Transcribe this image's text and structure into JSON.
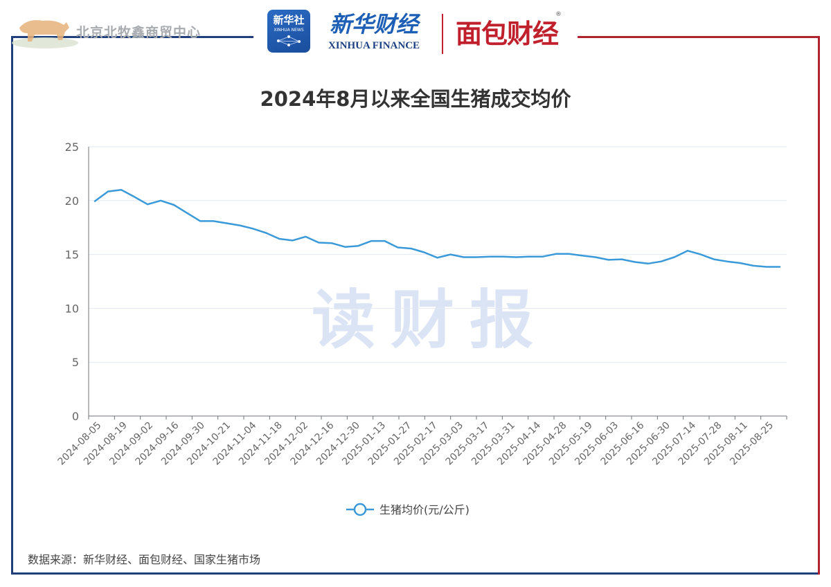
{
  "header": {
    "brand_center": "北京北牧鑫商贸中心",
    "xinhua_badge_cn": "新华社",
    "xinhua_badge_en": "XINHUA NEWS",
    "xinhua_finance_cn": "新华财经",
    "xinhua_finance_en": "XINHUA FINANCE",
    "mianbao": "面包财经",
    "registered_mark": "®"
  },
  "watermark": "读财报",
  "source": "数据来源：新华财经、面包财经、国家生猪市场",
  "colors": {
    "line": "#3a9ad9",
    "frame_left": "#1f3f7a",
    "frame_right": "#b0222e"
  },
  "chart_data": {
    "type": "line",
    "title": "2024年8月以来全国生猪成交均价",
    "xlabel": "",
    "ylabel": "",
    "ylim": [
      0,
      25
    ],
    "yticks": [
      0,
      5,
      10,
      15,
      20,
      25
    ],
    "grid": true,
    "legend_position": "bottom-center",
    "tick_labels": [
      "2024-08-05",
      "2024-08-19",
      "2024-09-02",
      "2024-09-16",
      "2024-09-30",
      "2024-10-21",
      "2024-11-04",
      "2024-11-18",
      "2024-12-02",
      "2024-12-16",
      "2024-12-30",
      "2025-01-13",
      "2025-01-27",
      "2025-02-17",
      "2025-03-03",
      "2025-03-17",
      "2025-03-31",
      "2025-04-14",
      "2025-04-28",
      "2025-05-19",
      "2025-06-03",
      "2025-06-16",
      "2025-06-30",
      "2025-07-14",
      "2025-07-28",
      "2025-08-11",
      "2025-08-25"
    ],
    "series": [
      {
        "name": "生猪均价(元/公斤)",
        "values": [
          19.95,
          20.85,
          21.0,
          20.35,
          19.65,
          20.0,
          19.6,
          18.85,
          18.1,
          18.1,
          17.9,
          17.7,
          17.4,
          17.0,
          16.45,
          16.3,
          16.65,
          16.1,
          16.05,
          15.7,
          15.8,
          16.25,
          16.25,
          15.65,
          15.55,
          15.2,
          14.7,
          15.0,
          14.75,
          14.75,
          14.8,
          14.8,
          14.75,
          14.8,
          14.8,
          15.05,
          15.05,
          14.9,
          14.75,
          14.5,
          14.55,
          14.3,
          14.15,
          14.35,
          14.75,
          15.35,
          15.0,
          14.55,
          14.35,
          14.2,
          13.95,
          13.85,
          13.85
        ]
      }
    ]
  }
}
